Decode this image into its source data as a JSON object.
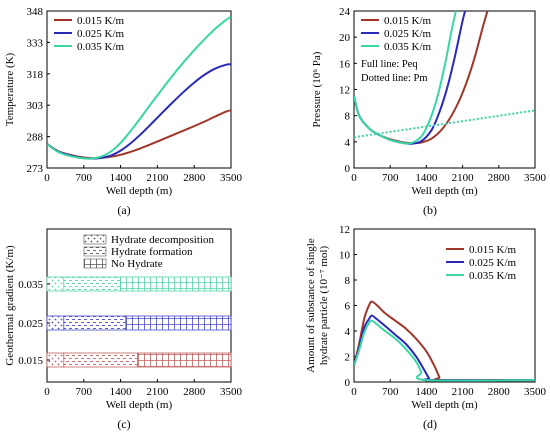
{
  "chart_data": [
    {
      "panel": "(a)",
      "type": "line",
      "xlabel": "Well depth (m)",
      "ylabel": "Temperature (K)",
      "xlim": [
        0,
        3500
      ],
      "ylim": [
        273,
        348
      ],
      "xticks": [
        "0",
        "700",
        "1400",
        "2100",
        "2800",
        "3500"
      ],
      "yticks": [
        "273",
        "288",
        "303",
        "318",
        "333",
        "348"
      ],
      "legend_position": "top-left",
      "series": [
        {
          "name": "0.015 K/m",
          "color": "#a0362a",
          "x": [
            0,
            200,
            400,
            600,
            800,
            1000,
            1200,
            1400,
            1600,
            1800,
            2000,
            2200,
            2400,
            2600,
            2800,
            3000,
            3200,
            3400,
            3500
          ],
          "y": [
            284.5,
            281.2,
            279.5,
            278.4,
            277.8,
            277.8,
            278.3,
            279.3,
            280.8,
            282.6,
            284.6,
            286.7,
            288.8,
            290.9,
            293.0,
            295.2,
            297.6,
            299.9,
            300.6
          ]
        },
        {
          "name": "0.025 K/m",
          "color": "#2a2ab8",
          "x": [
            0,
            200,
            400,
            600,
            800,
            1000,
            1200,
            1400,
            1600,
            1800,
            2000,
            2200,
            2400,
            2600,
            2800,
            3000,
            3200,
            3400,
            3500
          ],
          "y": [
            284.5,
            281.0,
            279.3,
            278.1,
            277.5,
            277.7,
            278.8,
            281.3,
            285.0,
            289.5,
            294.5,
            299.6,
            304.6,
            309.4,
            313.8,
            317.6,
            320.5,
            322.3,
            322.6
          ]
        },
        {
          "name": "0.035 K/m",
          "color": "#3ad6a4",
          "x": [
            0,
            200,
            400,
            600,
            800,
            1000,
            1200,
            1400,
            1600,
            1800,
            2000,
            2200,
            2400,
            2600,
            2800,
            3000,
            3200,
            3400,
            3500
          ],
          "y": [
            284.5,
            280.8,
            279.0,
            277.9,
            277.5,
            278.2,
            280.6,
            285.0,
            291.0,
            297.6,
            304.4,
            311.0,
            317.5,
            323.6,
            329.3,
            334.6,
            339.5,
            343.6,
            345.3
          ]
        }
      ]
    },
    {
      "panel": "(b)",
      "type": "line",
      "xlabel": "Well depth (m)",
      "ylabel": "Pressure (10⁶ Pa)",
      "xlim": [
        0,
        3500
      ],
      "ylim": [
        0,
        24
      ],
      "xticks": [
        "0",
        "700",
        "1400",
        "2100",
        "2800",
        "3500"
      ],
      "yticks": [
        "0",
        "4",
        "8",
        "12",
        "16",
        "20",
        "24"
      ],
      "legend_position": "top-left",
      "annotations": [
        "Full line: Peq",
        "Dotted line: Pm"
      ],
      "series": [
        {
          "name": "0.015 K/m",
          "style": "solid",
          "color": "#a0362a",
          "x": [
            0,
            100,
            300,
            500,
            700,
            900,
            1100,
            1300,
            1500,
            1700,
            1900,
            2100,
            2300,
            2500,
            2600
          ],
          "y": [
            11.0,
            8.0,
            6.0,
            5.0,
            4.4,
            4.0,
            3.8,
            3.9,
            4.5,
            5.9,
            8.2,
            11.5,
            16.0,
            21.8,
            24.5
          ]
        },
        {
          "name": "0.025 K/m",
          "style": "solid",
          "color": "#2a2ab8",
          "x": [
            0,
            100,
            300,
            500,
            700,
            900,
            1100,
            1300,
            1500,
            1650,
            1800,
            1950,
            2100,
            2200
          ],
          "y": [
            11.0,
            8.0,
            6.0,
            5.0,
            4.3,
            3.9,
            3.7,
            4.1,
            5.8,
            8.5,
            12.2,
            17.0,
            22.5,
            25.5
          ]
        },
        {
          "name": "0.035 K/m",
          "style": "solid",
          "color": "#3ad6a4",
          "x": [
            0,
            100,
            300,
            500,
            700,
            900,
            1100,
            1300,
            1450,
            1600,
            1750,
            1900,
            2000
          ],
          "y": [
            11.0,
            8.0,
            6.0,
            5.0,
            4.3,
            3.9,
            3.8,
            4.8,
            7.0,
            10.5,
            15.5,
            21.5,
            25.0
          ]
        },
        {
          "name": "Pm",
          "style": "dotted",
          "color": "#3ad6a4",
          "x": [
            0,
            3500
          ],
          "y": [
            4.7,
            8.8
          ]
        }
      ]
    },
    {
      "panel": "(c)",
      "type": "bar",
      "xlabel": "Well depth (m)",
      "ylabel": "Geothermal gradient (K/m)",
      "xlim": [
        0,
        3500
      ],
      "xticks": [
        "0",
        "700",
        "1400",
        "2100",
        "2800",
        "3500"
      ],
      "categories": [
        "0.015",
        "0.025",
        "0.035"
      ],
      "legend": [
        "Hydrate decomposition",
        "Hydrate formation",
        "No Hydrate"
      ],
      "segments": [
        {
          "category": "0.015",
          "color": "#c06060",
          "decomposition": [
            0,
            320
          ],
          "formation": [
            320,
            1720
          ],
          "no_hydrate": [
            1720,
            3500
          ]
        },
        {
          "category": "0.025",
          "color": "#4a4ac8",
          "decomposition": [
            0,
            320
          ],
          "formation": [
            320,
            1500
          ],
          "no_hydrate": [
            1500,
            3500
          ]
        },
        {
          "category": "0.035",
          "color": "#55d6aa",
          "decomposition": [
            0,
            320
          ],
          "formation": [
            320,
            1400
          ],
          "no_hydrate": [
            1400,
            3500
          ]
        }
      ]
    },
    {
      "panel": "(d)",
      "type": "line",
      "xlabel": "Well depth (m)",
      "ylabel": "Amount of substance of single hydrate particle (10⁻⁷ mol)",
      "xlim": [
        0,
        3500
      ],
      "ylim": [
        0,
        12
      ],
      "xticks": [
        "0",
        "700",
        "1400",
        "2100",
        "2800",
        "3500"
      ],
      "yticks": [
        "0",
        "2",
        "4",
        "6",
        "8",
        "10",
        "12"
      ],
      "legend_position": "top-right",
      "series": [
        {
          "name": "0.015 K/m",
          "color": "#a0362a",
          "x": [
            0,
            100,
            200,
            300,
            350,
            450,
            600,
            800,
            1000,
            1200,
            1400,
            1550,
            1650,
            1700,
            3500
          ],
          "y": [
            1.3,
            3.0,
            5.0,
            6.1,
            6.3,
            6.0,
            5.4,
            4.8,
            4.2,
            3.4,
            2.4,
            1.3,
            0.4,
            0.15,
            0.15
          ]
        },
        {
          "name": "0.025 K/m",
          "color": "#2a2ab8",
          "x": [
            0,
            100,
            200,
            300,
            350,
            450,
            600,
            800,
            1000,
            1200,
            1350,
            1450,
            1500,
            3500
          ],
          "y": [
            1.3,
            2.7,
            4.3,
            5.0,
            5.2,
            4.9,
            4.4,
            3.7,
            3.0,
            2.0,
            1.0,
            0.3,
            0.15,
            0.15
          ]
        },
        {
          "name": "0.035 K/m",
          "color": "#3ad6a4",
          "x": [
            0,
            100,
            200,
            300,
            350,
            450,
            600,
            800,
            1000,
            1200,
            1300,
            1400,
            3500
          ],
          "y": [
            1.3,
            2.5,
            3.9,
            4.7,
            4.8,
            4.5,
            4.0,
            3.4,
            2.6,
            1.6,
            0.8,
            0.15,
            0.15
          ]
        }
      ]
    }
  ],
  "panel_labels": [
    "(a)",
    "(b)",
    "(c)",
    "(d)"
  ]
}
